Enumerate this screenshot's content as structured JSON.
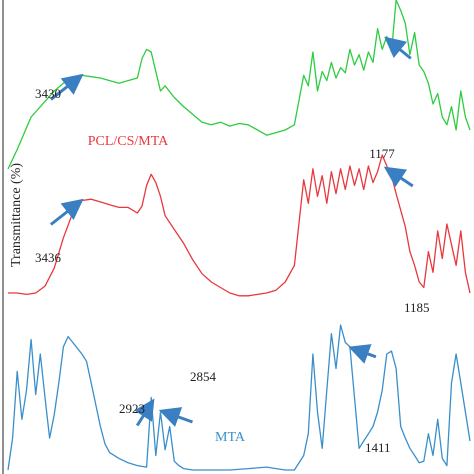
{
  "chart_data": {
    "type": "line",
    "title": "",
    "xlabel": "",
    "ylabel": "Transmittance (%)",
    "grid": false,
    "legend": "none",
    "x_range_index": [
      0,
      100
    ],
    "series": [
      {
        "id": "top",
        "name": "",
        "color": "#2ecc40",
        "points": [
          [
            0,
            -30
          ],
          [
            2,
            -15
          ],
          [
            5,
            10
          ],
          [
            8,
            22
          ],
          [
            10,
            30
          ],
          [
            12,
            36
          ],
          [
            14,
            40
          ],
          [
            16,
            42
          ],
          [
            18,
            41
          ],
          [
            20,
            40
          ],
          [
            22,
            38
          ],
          [
            24,
            36
          ],
          [
            26,
            38
          ],
          [
            28,
            40
          ],
          [
            29,
            55
          ],
          [
            30,
            62
          ],
          [
            31,
            60
          ],
          [
            32,
            45
          ],
          [
            33,
            30
          ],
          [
            34,
            34
          ],
          [
            36,
            25
          ],
          [
            38,
            18
          ],
          [
            40,
            12
          ],
          [
            42,
            6
          ],
          [
            44,
            4
          ],
          [
            46,
            6
          ],
          [
            48,
            3
          ],
          [
            50,
            5
          ],
          [
            52,
            4
          ],
          [
            54,
            0
          ],
          [
            56,
            -4
          ],
          [
            58,
            -2
          ],
          [
            60,
            0
          ],
          [
            62,
            4
          ],
          [
            64,
            42
          ],
          [
            65,
            34
          ],
          [
            66,
            60
          ],
          [
            67,
            30
          ],
          [
            68,
            45
          ],
          [
            69,
            38
          ],
          [
            70,
            52
          ],
          [
            71,
            40
          ],
          [
            72,
            48
          ],
          [
            73,
            44
          ],
          [
            74,
            62
          ],
          [
            75,
            50
          ],
          [
            76,
            58
          ],
          [
            77,
            46
          ],
          [
            78,
            60
          ],
          [
            79,
            52
          ],
          [
            80,
            78
          ],
          [
            81,
            62
          ],
          [
            82,
            72
          ],
          [
            83,
            60
          ],
          [
            84,
            100
          ],
          [
            85,
            92
          ],
          [
            86,
            82
          ],
          [
            87,
            58
          ],
          [
            88,
            75
          ],
          [
            89,
            50
          ],
          [
            90,
            45
          ],
          [
            91,
            36
          ],
          [
            92,
            20
          ],
          [
            93,
            28
          ],
          [
            94,
            10
          ],
          [
            95,
            4
          ],
          [
            96,
            18
          ],
          [
            97,
            0
          ],
          [
            98,
            30
          ],
          [
            99,
            10
          ],
          [
            100,
            0
          ]
        ]
      },
      {
        "id": "middle",
        "name": "PCL/CS/MTA",
        "color": "#e8383d",
        "points": [
          [
            0,
            0
          ],
          [
            2,
            0
          ],
          [
            4,
            -1
          ],
          [
            6,
            0
          ],
          [
            8,
            5
          ],
          [
            10,
            18
          ],
          [
            12,
            40
          ],
          [
            14,
            58
          ],
          [
            16,
            67
          ],
          [
            18,
            68
          ],
          [
            20,
            66
          ],
          [
            22,
            64
          ],
          [
            24,
            62
          ],
          [
            26,
            62
          ],
          [
            28,
            58
          ],
          [
            29,
            63
          ],
          [
            30,
            78
          ],
          [
            31,
            86
          ],
          [
            32,
            80
          ],
          [
            33,
            70
          ],
          [
            34,
            56
          ],
          [
            36,
            46
          ],
          [
            38,
            36
          ],
          [
            40,
            24
          ],
          [
            42,
            14
          ],
          [
            44,
            8
          ],
          [
            46,
            4
          ],
          [
            48,
            0
          ],
          [
            50,
            -2
          ],
          [
            52,
            -2
          ],
          [
            54,
            -1
          ],
          [
            56,
            0
          ],
          [
            58,
            2
          ],
          [
            60,
            8
          ],
          [
            62,
            20
          ],
          [
            64,
            82
          ],
          [
            65,
            65
          ],
          [
            66,
            90
          ],
          [
            67,
            70
          ],
          [
            68,
            85
          ],
          [
            69,
            65
          ],
          [
            70,
            88
          ],
          [
            71,
            72
          ],
          [
            72,
            90
          ],
          [
            73,
            75
          ],
          [
            74,
            92
          ],
          [
            75,
            78
          ],
          [
            76,
            90
          ],
          [
            77,
            75
          ],
          [
            78,
            92
          ],
          [
            79,
            80
          ],
          [
            80,
            88
          ],
          [
            81,
            100
          ],
          [
            82,
            92
          ],
          [
            83,
            85
          ],
          [
            84,
            72
          ],
          [
            85,
            60
          ],
          [
            86,
            48
          ],
          [
            87,
            30
          ],
          [
            88,
            20
          ],
          [
            89,
            8
          ],
          [
            90,
            4
          ],
          [
            91,
            30
          ],
          [
            92,
            15
          ],
          [
            93,
            45
          ],
          [
            94,
            25
          ],
          [
            95,
            50
          ],
          [
            96,
            35
          ],
          [
            97,
            20
          ],
          [
            98,
            45
          ],
          [
            99,
            15
          ],
          [
            100,
            0
          ]
        ]
      },
      {
        "id": "bottom",
        "name": "MTA",
        "color": "#3a8fcb",
        "points": [
          [
            0,
            0
          ],
          [
            1,
            22
          ],
          [
            2,
            68
          ],
          [
            3,
            35
          ],
          [
            4,
            55
          ],
          [
            5,
            90
          ],
          [
            6,
            52
          ],
          [
            7,
            80
          ],
          [
            8,
            50
          ],
          [
            9,
            22
          ],
          [
            10,
            38
          ],
          [
            11,
            60
          ],
          [
            12,
            85
          ],
          [
            13,
            92
          ],
          [
            14,
            88
          ],
          [
            15,
            84
          ],
          [
            16,
            80
          ],
          [
            17,
            75
          ],
          [
            18,
            60
          ],
          [
            19,
            45
          ],
          [
            20,
            30
          ],
          [
            21,
            18
          ],
          [
            22,
            12
          ],
          [
            24,
            8
          ],
          [
            26,
            5
          ],
          [
            28,
            3
          ],
          [
            30,
            2
          ],
          [
            31,
            50
          ],
          [
            32,
            10
          ],
          [
            33,
            40
          ],
          [
            34,
            14
          ],
          [
            35,
            30
          ],
          [
            36,
            6
          ],
          [
            37,
            3
          ],
          [
            38,
            1
          ],
          [
            40,
            0
          ],
          [
            44,
            0
          ],
          [
            48,
            0
          ],
          [
            52,
            1
          ],
          [
            56,
            2
          ],
          [
            58,
            1
          ],
          [
            60,
            0
          ],
          [
            62,
            0
          ],
          [
            64,
            10
          ],
          [
            65,
            25
          ],
          [
            66,
            80
          ],
          [
            67,
            40
          ],
          [
            68,
            15
          ],
          [
            69,
            55
          ],
          [
            70,
            94
          ],
          [
            71,
            70
          ],
          [
            72,
            100
          ],
          [
            73,
            88
          ],
          [
            74,
            85
          ],
          [
            75,
            50
          ],
          [
            76,
            15
          ],
          [
            77,
            20
          ],
          [
            78,
            25
          ],
          [
            79,
            30
          ],
          [
            80,
            40
          ],
          [
            81,
            55
          ],
          [
            82,
            80
          ],
          [
            83,
            82
          ],
          [
            84,
            70
          ],
          [
            85,
            30
          ],
          [
            86,
            22
          ],
          [
            87,
            15
          ],
          [
            88,
            10
          ],
          [
            89,
            5
          ],
          [
            90,
            6
          ],
          [
            91,
            25
          ],
          [
            92,
            10
          ],
          [
            93,
            35
          ],
          [
            94,
            8
          ],
          [
            95,
            3
          ],
          [
            96,
            60
          ],
          [
            97,
            80
          ],
          [
            98,
            60
          ],
          [
            99,
            40
          ],
          [
            100,
            20
          ]
        ]
      }
    ],
    "annotations": [
      {
        "series": "top",
        "text": "3430",
        "at_x": 16
      },
      {
        "series": "top",
        "text": "1177",
        "at_x": 82
      },
      {
        "series": "middle",
        "text": "3436",
        "at_x": 16
      },
      {
        "series": "middle",
        "text": "1185",
        "at_x": 82
      },
      {
        "series": "bottom",
        "text": "2923",
        "at_x": 31
      },
      {
        "series": "bottom",
        "text": "2854",
        "at_x": 33
      },
      {
        "series": "bottom",
        "text": "1411",
        "at_x": 74
      }
    ]
  }
}
